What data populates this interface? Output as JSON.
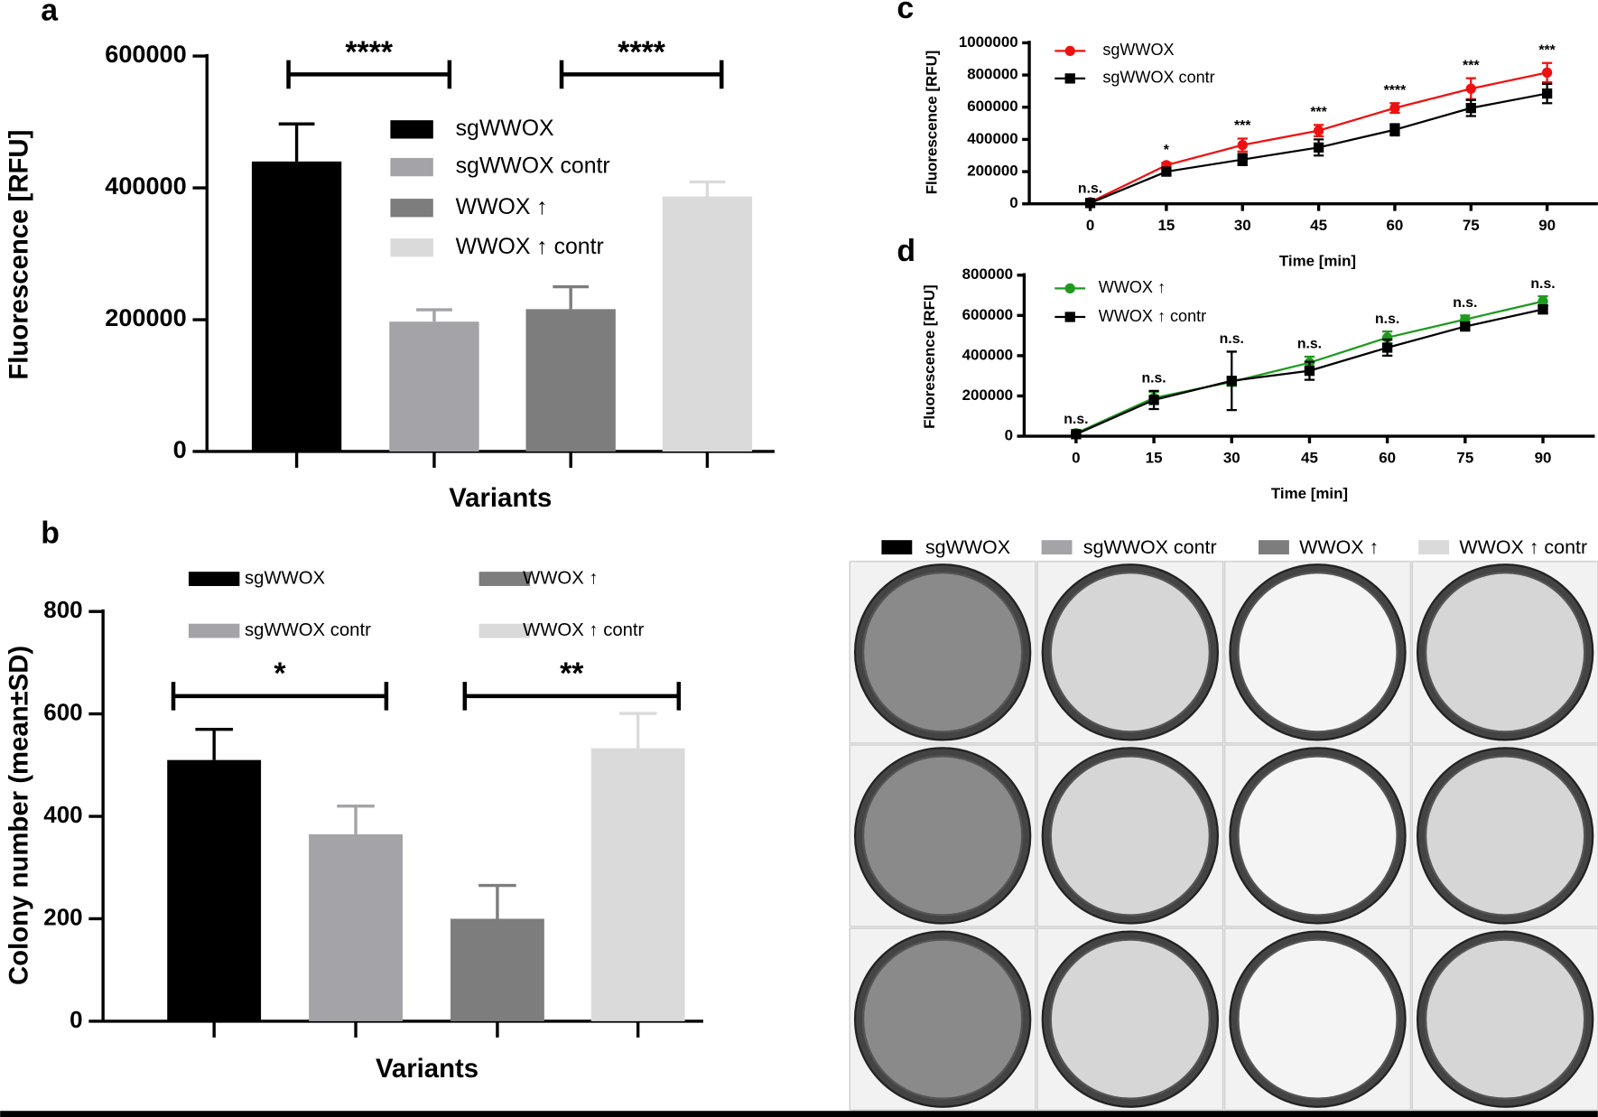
{
  "chart_data": [
    {
      "type": "bar",
      "title": "a",
      "y_label": "Fluorescence [RFU]",
      "x_label": "Variants",
      "ylim": [
        0,
        600000
      ],
      "yticks": [
        0,
        200000,
        400000,
        600000
      ],
      "series": [
        {
          "name": "sgWWOX",
          "color": "#000000",
          "value": 440000,
          "error": 57000
        },
        {
          "name": "sgWWOX contr",
          "color": "#a3a3a8",
          "value": 197000,
          "error": 18000
        },
        {
          "name": "WWOX ↑",
          "color": "#7d7d7d",
          "value": 216000,
          "error": 34000
        },
        {
          "name": "WWOX ↑ contr",
          "color": "#dadada",
          "value": 387000,
          "error": 22000
        }
      ],
      "annotations": [
        "****",
        "****"
      ]
    },
    {
      "type": "bar",
      "title": "b",
      "y_label": "Colony number (mean±SD)",
      "x_label": "Variants",
      "ylim": [
        0,
        800
      ],
      "yticks": [
        0,
        200,
        400,
        600,
        800
      ],
      "series": [
        {
          "name": "sgWWOX",
          "color": "#000000",
          "value": 510,
          "error": 60
        },
        {
          "name": "sgWWOX contr",
          "color": "#a3a3a8",
          "value": 365,
          "error": 55
        },
        {
          "name": "WWOX ↑",
          "color": "#7d7d7d",
          "value": 200,
          "error": 65
        },
        {
          "name": "WWOX ↑ contr",
          "color": "#dadada",
          "value": 533,
          "error": 68
        }
      ],
      "annotations": [
        "*",
        "**"
      ]
    },
    {
      "type": "line",
      "title": "c",
      "y_label": "Fluorescence [RFU]",
      "x_label": "Time [min]",
      "x": [
        0,
        15,
        30,
        45,
        60,
        75,
        90
      ],
      "xlim": [
        -12,
        100
      ],
      "xticks": [
        0,
        15,
        30,
        45,
        60,
        75,
        90
      ],
      "ylim": [
        0,
        1000000
      ],
      "yticks": [
        0,
        200000,
        400000,
        600000,
        800000,
        1000000
      ],
      "series": [
        {
          "name": "sgWWOX",
          "color": "#ee1111",
          "values": [
            10000,
            240000,
            365000,
            455000,
            595000,
            715000,
            815000
          ],
          "errors": [
            5000,
            15000,
            40000,
            35000,
            30000,
            65000,
            60000
          ]
        },
        {
          "name": "sgWWOX contr",
          "color": "#000000",
          "values": [
            5000,
            200000,
            275000,
            350000,
            460000,
            595000,
            685000
          ],
          "errors": [
            5000,
            20000,
            35000,
            50000,
            35000,
            50000,
            60000
          ]
        }
      ],
      "annotations": [
        "n.s.",
        "*",
        "***",
        "***",
        "****",
        "***",
        "***"
      ]
    },
    {
      "type": "line",
      "title": "d",
      "y_label": "Fluorescence [RFU]",
      "x_label": "Time [min]",
      "x": [
        0,
        15,
        30,
        45,
        60,
        75,
        90
      ],
      "xlim": [
        -10,
        100
      ],
      "xticks": [
        0,
        15,
        30,
        45,
        60,
        75,
        90
      ],
      "ylim": [
        0,
        800000
      ],
      "yticks": [
        0,
        200000,
        400000,
        600000,
        800000
      ],
      "series": [
        {
          "name": "WWOX ↑",
          "color": "#1e9a1e",
          "values": [
            15000,
            190000,
            270000,
            365000,
            490000,
            580000,
            670000
          ],
          "errors": [
            5000,
            30000,
            20000,
            30000,
            30000,
            20000,
            25000
          ]
        },
        {
          "name": "WWOX ↑ contr",
          "color": "#000000",
          "values": [
            10000,
            180000,
            275000,
            325000,
            440000,
            545000,
            630000
          ],
          "errors": [
            5000,
            45000,
            145000,
            45000,
            40000,
            20000,
            20000
          ]
        }
      ],
      "annotations": [
        "n.s.",
        "n.s.",
        "n.s.",
        "n.s.",
        "n.s.",
        "n.s.",
        "n.s."
      ]
    }
  ],
  "plates": {
    "legend": [
      {
        "name": "sgWWOX",
        "color": "#000000"
      },
      {
        "name": "sgWWOX contr",
        "color": "#a3a3a8"
      },
      {
        "name": "WWOX ↑",
        "color": "#7d7d7d"
      },
      {
        "name": "WWOX ↑ contr",
        "color": "#dadada"
      }
    ]
  }
}
